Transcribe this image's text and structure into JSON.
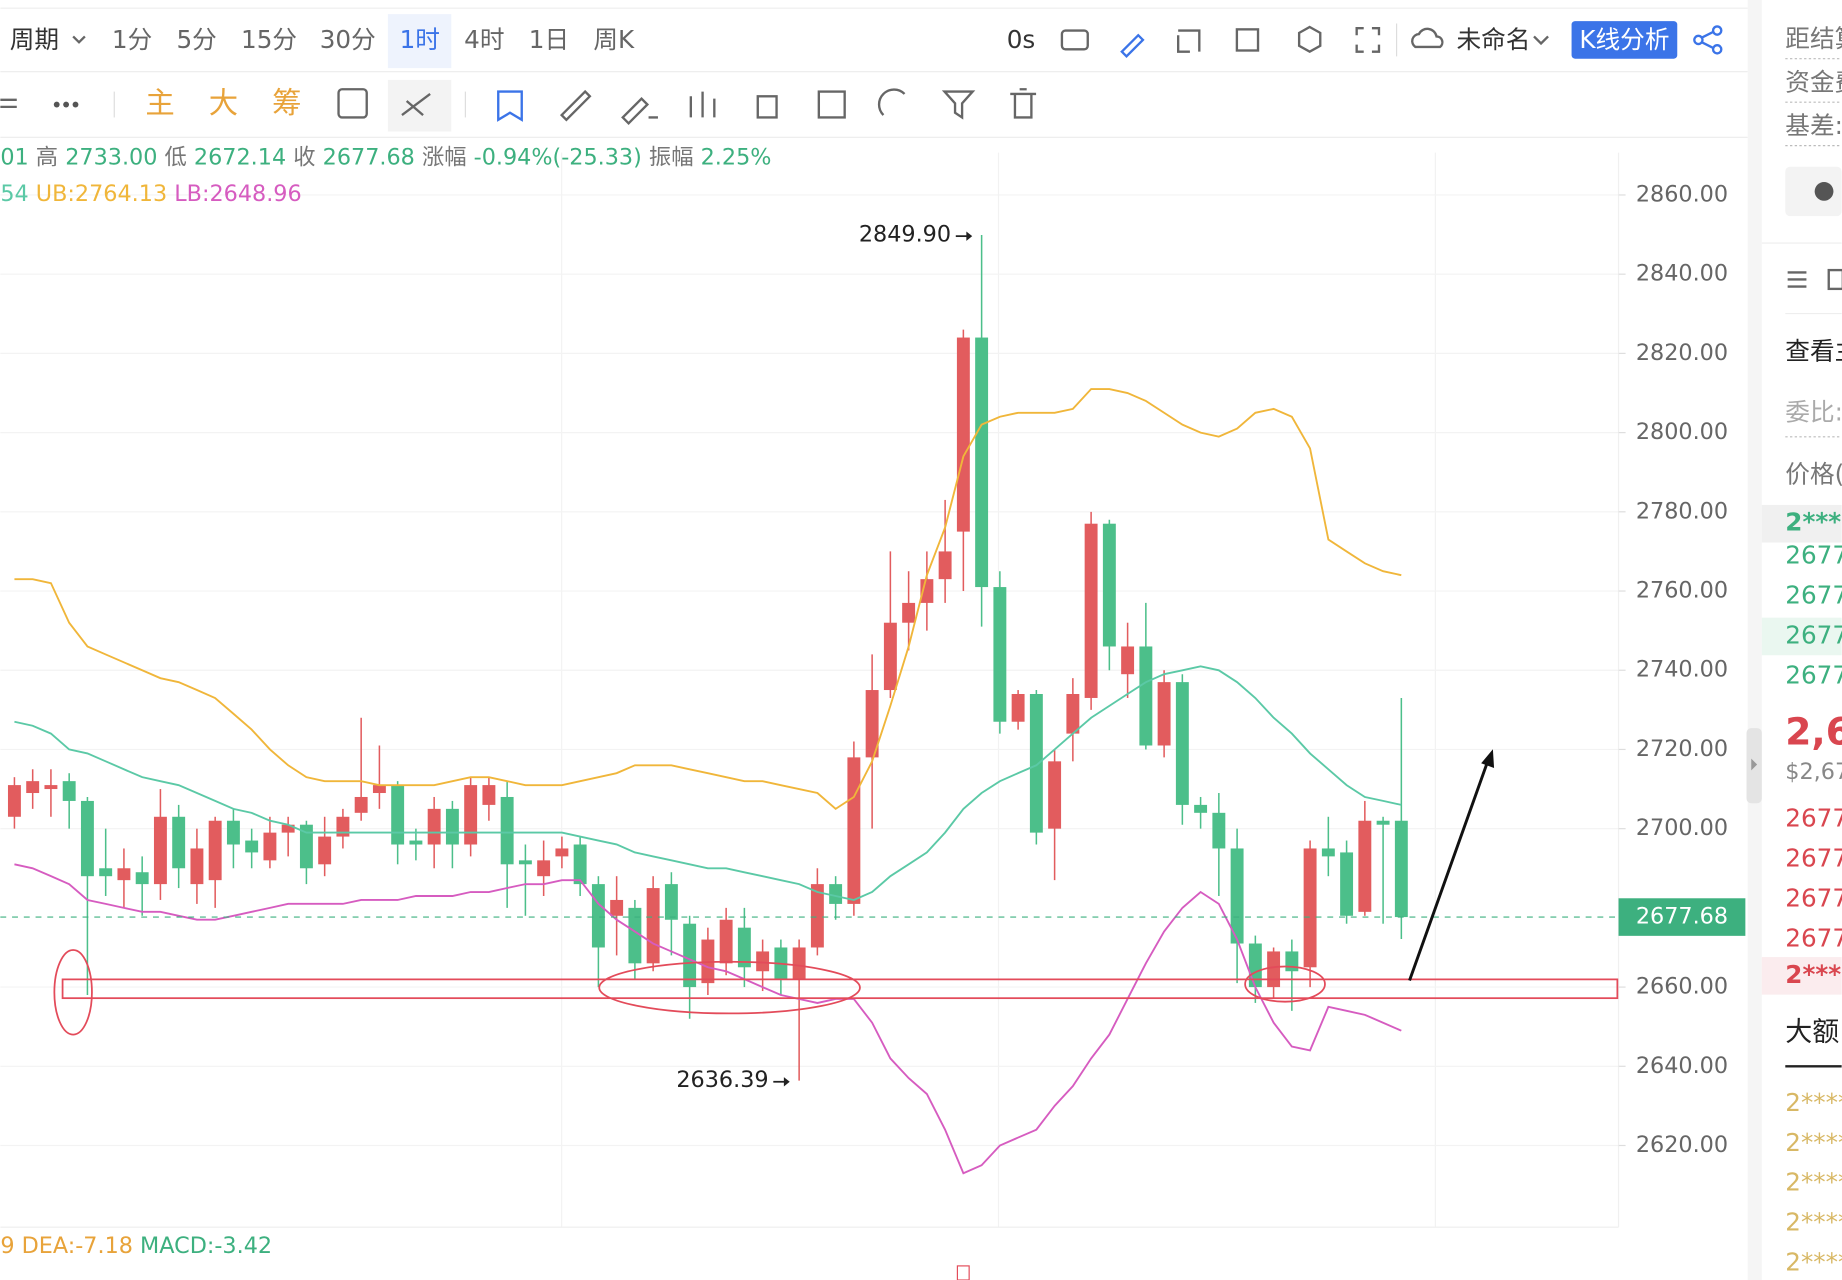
{
  "toolbar": {
    "period": "周期",
    "intervals": [
      "1分",
      "5分",
      "15分",
      "30分",
      "1时",
      "4时",
      "1日",
      "周K"
    ],
    "active": "1时",
    "timer": "0s",
    "layout_name": "未命名",
    "analysis_button": "K线分析",
    "indicators": [
      "主",
      "大",
      "筹"
    ]
  },
  "quote_line": {
    "lead": "01",
    "items": [
      {
        "label": "高",
        "value": "2733.00"
      },
      {
        "label": "低",
        "value": "2672.14"
      },
      {
        "label": "收",
        "value": "2677.68"
      },
      {
        "label": "涨幅",
        "value": "-0.94%(-25.33)"
      },
      {
        "label": "振幅",
        "value": "2.25%"
      }
    ]
  },
  "band_line": {
    "lead": "54",
    "ub": "UB:2764.13",
    "lb": "LB:2648.96"
  },
  "macd_line": {
    "lead": "9",
    "dea": "DEA:-7.18",
    "macd": "MACD:-3.42"
  },
  "side_panel": {
    "labels": [
      "距结算",
      "资金费",
      "基差:"
    ],
    "view": "查看主",
    "ratio": "委比:",
    "price_header": "价格(",
    "ask_top": "2***(",
    "asks": [
      "2677",
      "2677",
      "2677",
      "2677"
    ],
    "last": "2,67",
    "last_usd": "$2,67",
    "bids": [
      "2677",
      "2677",
      "2677",
      "2677"
    ],
    "bid_bottom": "2***(",
    "big_orders": "大额",
    "big_rows": [
      "2****",
      "2****",
      "2****",
      "2****",
      "2****"
    ]
  },
  "chart_data": {
    "type": "candlestick",
    "up_color": "#e25c5e",
    "down_color": "#4cbf8a",
    "open": [
      2703,
      2709,
      2710,
      2712,
      2707,
      2690,
      2687,
      2689,
      2686,
      2703,
      2686,
      2687,
      2702,
      2697,
      2692,
      2699,
      2701,
      2691,
      2698,
      2704,
      2709,
      2711,
      2697,
      2696,
      2705,
      2696,
      2706,
      2708,
      2692,
      2688,
      2693,
      2696,
      2686,
      2678,
      2680,
      2666,
      2686,
      2676,
      2661,
      2666,
      2675,
      2664,
      2670,
      2662,
      2670,
      2686,
      2681,
      2718,
      2735,
      2752,
      2757,
      2763,
      2775,
      2824,
      2761,
      2727,
      2734,
      2700,
      2724,
      2733,
      2777,
      2739,
      2746,
      2721,
      2737,
      2706,
      2704,
      2695,
      2671,
      2660,
      2669,
      2665,
      2695,
      2694,
      2679,
      2702,
      2702
    ],
    "high": [
      2713,
      2715,
      2715,
      2714,
      2708,
      2700,
      2695,
      2693,
      2710,
      2706,
      2700,
      2703,
      2705,
      2700,
      2703,
      2703,
      2702,
      2703,
      2705,
      2728,
      2721,
      2712,
      2700,
      2708,
      2707,
      2713,
      2713,
      2712,
      2696,
      2697,
      2698,
      2698,
      2688,
      2688,
      2682,
      2688,
      2689,
      2678,
      2675,
      2680,
      2680,
      2672,
      2672,
      2672,
      2690,
      2688,
      2722,
      2744,
      2770,
      2765,
      2770,
      2783,
      2826,
      2849.9,
      2765,
      2735,
      2735,
      2720,
      2738,
      2780,
      2778,
      2752,
      2757,
      2740,
      2739,
      2708,
      2709,
      2700,
      2673,
      2670,
      2672,
      2697,
      2703,
      2697,
      2707,
      2703,
      2733
    ],
    "low": [
      2700,
      2705,
      2703,
      2700,
      2658,
      2683,
      2680,
      2678,
      2682,
      2685,
      2681,
      2680,
      2690,
      2690,
      2690,
      2693,
      2686,
      2688,
      2695,
      2702,
      2705,
      2691,
      2692,
      2690,
      2690,
      2693,
      2702,
      2680,
      2678,
      2683,
      2690,
      2683,
      2660,
      2668,
      2662,
      2664,
      2668,
      2652,
      2658,
      2663,
      2660,
      2659,
      2658,
      2636.39,
      2668,
      2677,
      2678,
      2700,
      2733,
      2745,
      2750,
      2757,
      2760,
      2751,
      2724,
      2725,
      2696,
      2687,
      2717,
      2730,
      2740,
      2733,
      2720,
      2718,
      2701,
      2700,
      2683,
      2661,
      2656,
      2657,
      2654,
      2660,
      2688,
      2676,
      2678,
      2676,
      2672.14
    ],
    "close": [
      2711,
      2712,
      2711,
      2707,
      2688,
      2688,
      2690,
      2686,
      2703,
      2690,
      2695,
      2702,
      2696,
      2694,
      2699,
      2701,
      2690,
      2698,
      2703,
      2708,
      2711,
      2696,
      2696,
      2705,
      2696,
      2711,
      2711,
      2691,
      2691,
      2692,
      2695,
      2686,
      2670,
      2682,
      2666,
      2685,
      2677,
      2660,
      2672,
      2677,
      2665,
      2669,
      2662,
      2670,
      2686,
      2681,
      2718,
      2735,
      2752,
      2757,
      2763,
      2770,
      2824,
      2761,
      2727,
      2734,
      2699,
      2717,
      2734,
      2777,
      2746,
      2746,
      2721,
      2737,
      2706,
      2704,
      2695,
      2671,
      2660,
      2669,
      2664,
      2695,
      2693,
      2678,
      2702,
      2701,
      2677.68
    ],
    "bands": [
      {
        "color": "#f0b63a",
        "values": [
          2763,
          2763,
          2762,
          2752,
          2746,
          2744,
          2742,
          2740,
          2738,
          2737,
          2735,
          2733,
          2729,
          2725,
          2720,
          2716,
          2713,
          2712,
          2712,
          2712,
          2711,
          2711,
          2711,
          2711,
          2712,
          2713,
          2713,
          2712,
          2711,
          2711,
          2711,
          2712,
          2713,
          2714,
          2716,
          2716,
          2716,
          2715,
          2714,
          2713,
          2712,
          2712,
          2711,
          2710,
          2709,
          2705,
          2708,
          2717,
          2731,
          2746,
          2764,
          2776,
          2794,
          2802,
          2804,
          2805,
          2805,
          2805,
          2806,
          2811,
          2811,
          2810,
          2808,
          2805,
          2802,
          2800,
          2799,
          2801,
          2805,
          2806,
          2804,
          2796,
          2773,
          2770,
          2767,
          2765,
          2764
        ]
      },
      {
        "color": "#5bc9a6",
        "values": [
          2727,
          2726,
          2724,
          2720,
          2719,
          2717,
          2715,
          2713,
          2712,
          2711,
          2709,
          2707,
          2705,
          2704,
          2702,
          2701,
          2699,
          2699,
          2699,
          2699,
          2699,
          2699,
          2699,
          2699,
          2699,
          2699,
          2699,
          2699,
          2699,
          2699,
          2699,
          2698,
          2697,
          2696,
          2694,
          2693,
          2692,
          2691,
          2690,
          2690,
          2689,
          2688,
          2687,
          2686,
          2684,
          2683,
          2682,
          2684,
          2688,
          2691,
          2694,
          2699,
          2705,
          2709,
          2712,
          2714,
          2716,
          2720,
          2724,
          2728,
          2731,
          2734,
          2737,
          2739,
          2740,
          2741,
          2740,
          2737,
          2733,
          2728,
          2724,
          2719,
          2715,
          2711,
          2708,
          2707,
          2706
        ]
      },
      {
        "color": "#d65cc0",
        "values": [
          2691,
          2690,
          2688,
          2686,
          2682,
          2681,
          2680,
          2679,
          2679,
          2678,
          2677,
          2677,
          2678,
          2679,
          2680,
          2681,
          2681,
          2681,
          2681,
          2682,
          2682,
          2682,
          2683,
          2683,
          2683,
          2684,
          2684,
          2685,
          2686,
          2686,
          2687,
          2687,
          2681,
          2677,
          2674,
          2671,
          2669,
          2667,
          2665,
          2664,
          2662,
          2660,
          2658,
          2657,
          2656,
          2657,
          2657,
          2651,
          2642,
          2637,
          2633,
          2624,
          2613,
          2615,
          2620,
          2622,
          2624,
          2630,
          2635,
          2642,
          2648,
          2657,
          2666,
          2674,
          2680,
          2684,
          2681,
          2672,
          2660,
          2651,
          2645,
          2644,
          2655,
          2654,
          2653,
          2651,
          2649
        ]
      }
    ],
    "ylim": [
      2610,
      2870
    ],
    "yticks": [
      {
        "value": 2860,
        "label": "2860.00"
      },
      {
        "value": 2840,
        "label": "2840.00"
      },
      {
        "value": 2820,
        "label": "2820.00"
      },
      {
        "value": 2800,
        "label": "2800.00"
      },
      {
        "value": 2780,
        "label": "2780.00"
      },
      {
        "value": 2760,
        "label": "2760.00"
      },
      {
        "value": 2740,
        "label": "2740.00"
      },
      {
        "value": 2720,
        "label": "2720.00"
      },
      {
        "value": 2700,
        "label": "2700.00"
      },
      {
        "value": 2660,
        "label": "2660.00"
      },
      {
        "value": 2640,
        "label": "2640.00"
      },
      {
        "value": 2620,
        "label": "2620.00"
      }
    ],
    "last_price": 2677.68,
    "annotations": [
      {
        "value": 2849.9,
        "label": "2849.90"
      },
      {
        "value": 2636.39,
        "label": "2636.39"
      }
    ],
    "grid": true
  }
}
